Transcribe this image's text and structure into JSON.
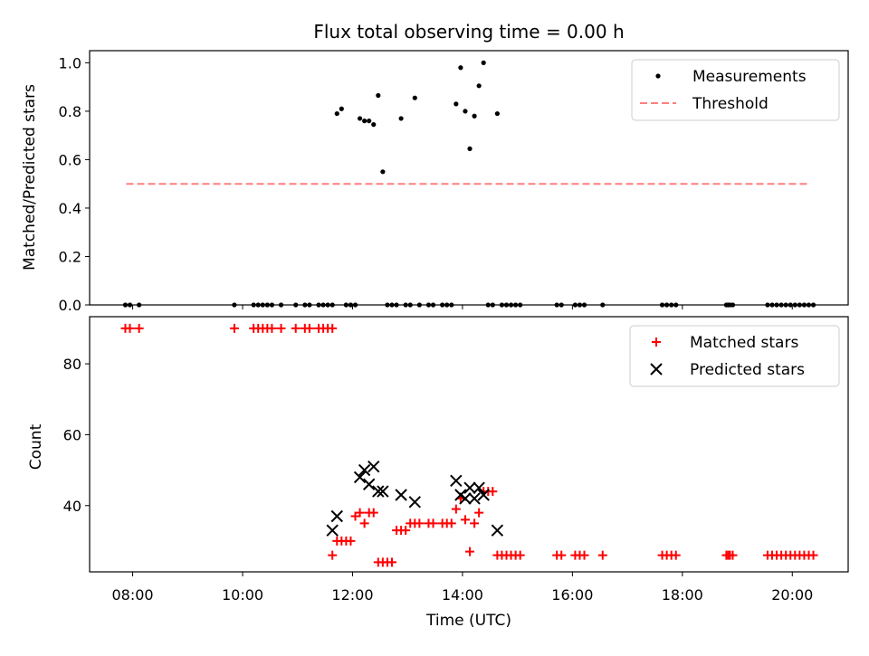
{
  "chart_data": [
    {
      "type": "scatter",
      "title": "Flux total observing time = 0.00 h",
      "xlabel": "",
      "ylabel": "Matched/Predicted stars",
      "xlim": [
        "07:13",
        "21:01"
      ],
      "ylim": [
        0,
        1.05
      ],
      "yticks": [
        0.0,
        0.2,
        0.4,
        0.6,
        0.8,
        1.0
      ],
      "ytick_labels": [
        "0.0",
        "0.2",
        "0.4",
        "0.6",
        "0.8",
        "1.0"
      ],
      "legend_position": "upper right",
      "series": [
        {
          "name": "Measurements",
          "kind": "scatter",
          "marker": "dot",
          "color": "#000000",
          "points": [
            [
              "07:52",
              0
            ],
            [
              "07:57",
              0
            ],
            [
              "08:07",
              0
            ],
            [
              "09:51",
              0
            ],
            [
              "10:12",
              0
            ],
            [
              "10:17",
              0
            ],
            [
              "10:22",
              0
            ],
            [
              "10:27",
              0
            ],
            [
              "10:32",
              0
            ],
            [
              "10:42",
              0
            ],
            [
              "10:58",
              0
            ],
            [
              "11:08",
              0
            ],
            [
              "11:13",
              0
            ],
            [
              "11:23",
              0
            ],
            [
              "11:28",
              0
            ],
            [
              "11:33",
              0
            ],
            [
              "11:38",
              0
            ],
            [
              "11:43",
              0.79
            ],
            [
              "11:48",
              0.81
            ],
            [
              "11:53",
              0
            ],
            [
              "11:58",
              0
            ],
            [
              "12:03",
              0
            ],
            [
              "12:08",
              0.77
            ],
            [
              "12:13",
              0.76
            ],
            [
              "12:18",
              0.76
            ],
            [
              "12:23",
              0.745
            ],
            [
              "12:28",
              0.865
            ],
            [
              "12:33",
              0.55
            ],
            [
              "12:38",
              0
            ],
            [
              "12:43",
              0
            ],
            [
              "12:48",
              0
            ],
            [
              "12:53",
              0.77
            ],
            [
              "12:58",
              0
            ],
            [
              "13:03",
              0
            ],
            [
              "13:08",
              0.855
            ],
            [
              "13:13",
              0
            ],
            [
              "13:23",
              0
            ],
            [
              "13:28",
              0
            ],
            [
              "13:38",
              0
            ],
            [
              "13:43",
              0
            ],
            [
              "13:48",
              0
            ],
            [
              "13:53",
              0.83
            ],
            [
              "13:58",
              0.98
            ],
            [
              "14:03",
              0.8
            ],
            [
              "14:08",
              0.645
            ],
            [
              "14:13",
              0.78
            ],
            [
              "14:18",
              0.905
            ],
            [
              "14:23",
              1.0
            ],
            [
              "14:28",
              0
            ],
            [
              "14:33",
              0
            ],
            [
              "14:38",
              0.79
            ],
            [
              "14:43",
              0
            ],
            [
              "14:48",
              0
            ],
            [
              "14:53",
              0
            ],
            [
              "14:58",
              0
            ],
            [
              "15:03",
              0
            ],
            [
              "15:43",
              0
            ],
            [
              "15:48",
              0
            ],
            [
              "16:03",
              0
            ],
            [
              "16:08",
              0
            ],
            [
              "16:13",
              0
            ],
            [
              "16:33",
              0
            ],
            [
              "17:38",
              0
            ],
            [
              "17:43",
              0
            ],
            [
              "17:48",
              0
            ],
            [
              "17:53",
              0
            ],
            [
              "18:48",
              0
            ],
            [
              "18:50",
              0
            ],
            [
              "18:52",
              0
            ],
            [
              "18:55",
              0
            ],
            [
              "19:33",
              0
            ],
            [
              "19:38",
              0
            ],
            [
              "19:43",
              0
            ],
            [
              "19:48",
              0
            ],
            [
              "19:53",
              0
            ],
            [
              "19:58",
              0
            ],
            [
              "20:03",
              0
            ],
            [
              "20:08",
              0
            ],
            [
              "20:13",
              0
            ],
            [
              "20:18",
              0
            ],
            [
              "20:23",
              0
            ]
          ]
        },
        {
          "name": "Threshold",
          "kind": "line",
          "style": "dashed",
          "color": "#ff7f7f",
          "points": [
            [
              "07:53",
              0.5
            ],
            [
              "20:18",
              0.5
            ]
          ]
        }
      ]
    },
    {
      "type": "scatter",
      "title": "",
      "xlabel": "Time (UTC)",
      "ylabel": "Count",
      "xlim": [
        "07:13",
        "21:01"
      ],
      "ylim": [
        21.3,
        93.3
      ],
      "xticks": [
        "08:00",
        "10:00",
        "12:00",
        "14:00",
        "16:00",
        "18:00",
        "20:00"
      ],
      "yticks": [
        40,
        60,
        80
      ],
      "ytick_labels": [
        "40",
        "60",
        "80"
      ],
      "legend_position": "upper right",
      "series": [
        {
          "name": "Matched stars",
          "kind": "scatter",
          "marker": "plus",
          "color": "#ff0000",
          "points": [
            [
              "07:52",
              90
            ],
            [
              "07:57",
              90
            ],
            [
              "08:07",
              90
            ],
            [
              "09:51",
              90
            ],
            [
              "10:12",
              90
            ],
            [
              "10:17",
              90
            ],
            [
              "10:22",
              90
            ],
            [
              "10:27",
              90
            ],
            [
              "10:32",
              90
            ],
            [
              "10:42",
              90
            ],
            [
              "10:58",
              90
            ],
            [
              "11:08",
              90
            ],
            [
              "11:13",
              90
            ],
            [
              "11:23",
              90
            ],
            [
              "11:28",
              90
            ],
            [
              "11:33",
              90
            ],
            [
              "11:38",
              90
            ],
            [
              "11:38",
              26
            ],
            [
              "11:43",
              30
            ],
            [
              "11:48",
              30
            ],
            [
              "11:53",
              30
            ],
            [
              "11:58",
              30
            ],
            [
              "12:03",
              37
            ],
            [
              "12:08",
              38
            ],
            [
              "12:13",
              35
            ],
            [
              "12:18",
              38
            ],
            [
              "12:23",
              38
            ],
            [
              "12:28",
              24
            ],
            [
              "12:33",
              24
            ],
            [
              "12:38",
              24
            ],
            [
              "12:43",
              24
            ],
            [
              "12:48",
              33
            ],
            [
              "12:53",
              33
            ],
            [
              "12:58",
              33
            ],
            [
              "13:03",
              35
            ],
            [
              "13:08",
              35
            ],
            [
              "13:13",
              35
            ],
            [
              "13:23",
              35
            ],
            [
              "13:28",
              35
            ],
            [
              "13:38",
              35
            ],
            [
              "13:43",
              35
            ],
            [
              "13:48",
              35
            ],
            [
              "13:53",
              39
            ],
            [
              "13:58",
              42
            ],
            [
              "14:03",
              36
            ],
            [
              "14:08",
              27
            ],
            [
              "14:13",
              35
            ],
            [
              "14:18",
              38
            ],
            [
              "14:23",
              44
            ],
            [
              "14:28",
              44
            ],
            [
              "14:33",
              44
            ],
            [
              "14:38",
              26
            ],
            [
              "14:43",
              26
            ],
            [
              "14:48",
              26
            ],
            [
              "14:53",
              26
            ],
            [
              "14:58",
              26
            ],
            [
              "15:03",
              26
            ],
            [
              "15:43",
              26
            ],
            [
              "15:48",
              26
            ],
            [
              "16:03",
              26
            ],
            [
              "16:08",
              26
            ],
            [
              "16:13",
              26
            ],
            [
              "16:33",
              26
            ],
            [
              "17:38",
              26
            ],
            [
              "17:43",
              26
            ],
            [
              "17:48",
              26
            ],
            [
              "17:53",
              26
            ],
            [
              "18:48",
              26
            ],
            [
              "18:50",
              26
            ],
            [
              "18:52",
              26
            ],
            [
              "18:55",
              26
            ],
            [
              "19:33",
              26
            ],
            [
              "19:38",
              26
            ],
            [
              "19:43",
              26
            ],
            [
              "19:48",
              26
            ],
            [
              "19:53",
              26
            ],
            [
              "19:58",
              26
            ],
            [
              "20:03",
              26
            ],
            [
              "20:08",
              26
            ],
            [
              "20:13",
              26
            ],
            [
              "20:18",
              26
            ],
            [
              "20:23",
              26
            ]
          ]
        },
        {
          "name": "Predicted stars",
          "kind": "scatter",
          "marker": "x",
          "color": "#000000",
          "points": [
            [
              "11:38",
              33
            ],
            [
              "11:43",
              37
            ],
            [
              "12:08",
              48
            ],
            [
              "12:13",
              50
            ],
            [
              "12:18",
              46
            ],
            [
              "12:23",
              51
            ],
            [
              "12:28",
              44
            ],
            [
              "12:33",
              44
            ],
            [
              "12:53",
              43
            ],
            [
              "13:08",
              41
            ],
            [
              "13:53",
              47
            ],
            [
              "13:58",
              43
            ],
            [
              "14:03",
              42
            ],
            [
              "14:08",
              45
            ],
            [
              "14:13",
              42
            ],
            [
              "14:18",
              45
            ],
            [
              "14:23",
              43
            ],
            [
              "14:38",
              33
            ]
          ]
        }
      ]
    }
  ]
}
